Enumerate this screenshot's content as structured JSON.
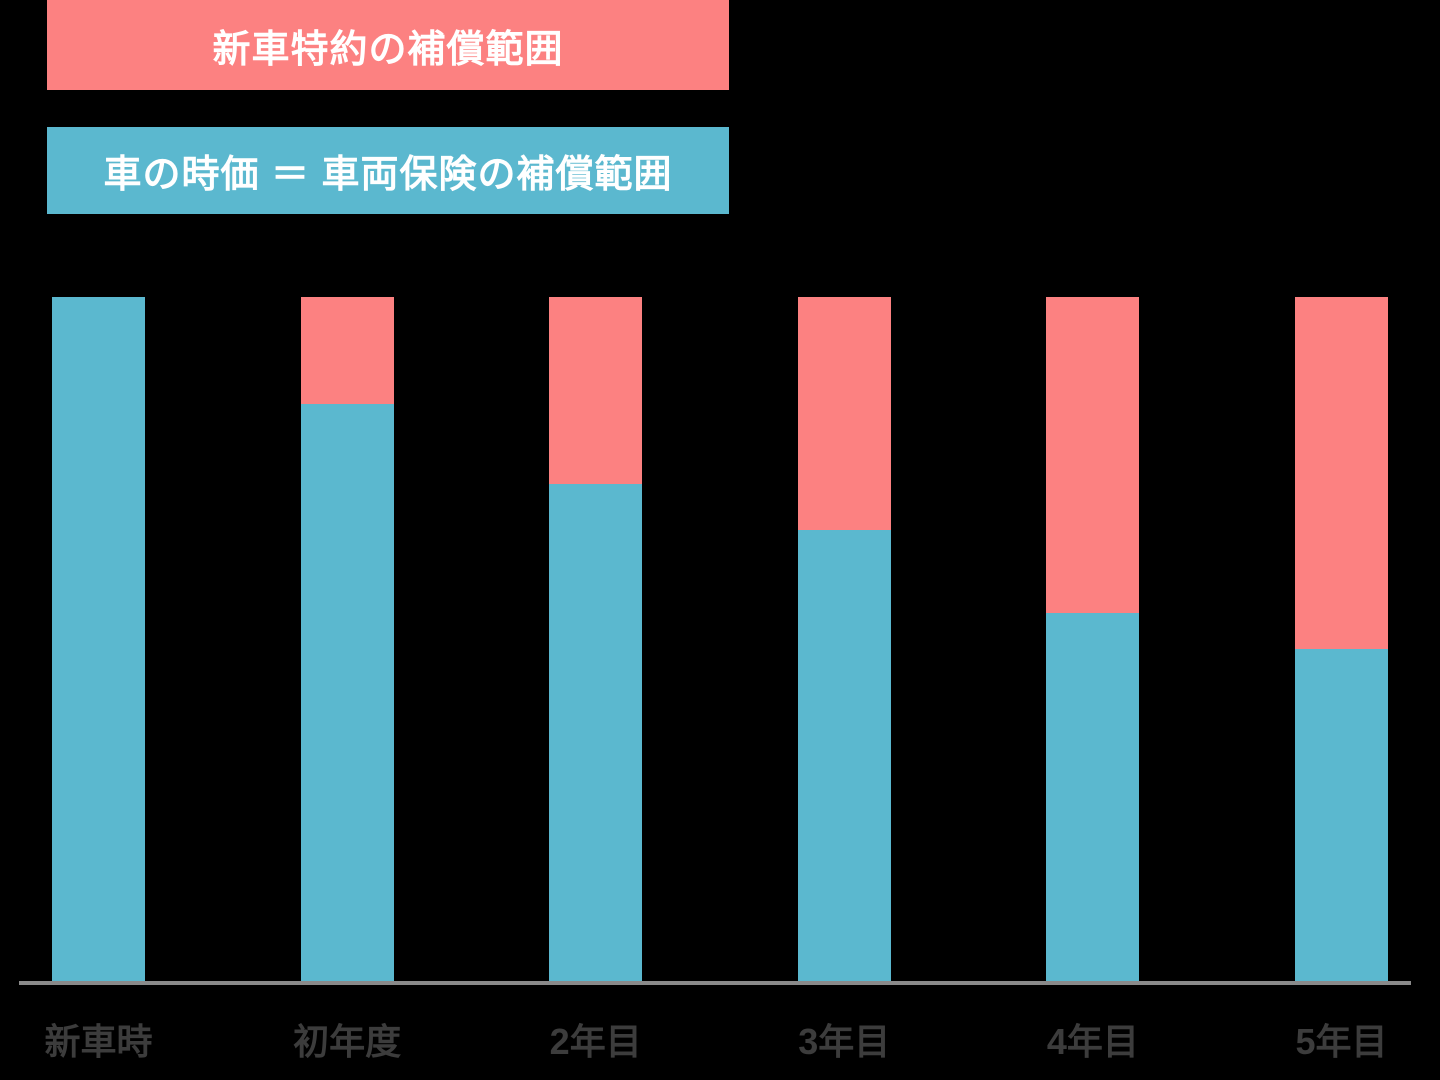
{
  "legend": {
    "items": [
      {
        "id": "new-car-rider-coverage",
        "label": "新車特約の補償範囲",
        "color": "#fc8181",
        "text_color": "#ffffff"
      },
      {
        "id": "market-value-coverage",
        "label": "車の時価 ＝ 車両保険の補償範囲",
        "color": "#5bb8cf",
        "text_color": "#ffffff"
      }
    ]
  },
  "chart_data": {
    "type": "bar",
    "variant": "stacked-vertical-100pct",
    "title": "",
    "categories": [
      "新車時",
      "初年度",
      "2年目",
      "3年目",
      "4年目",
      "5年目"
    ],
    "series": [
      {
        "name": "車の時価 ＝ 車両保険の補償範囲",
        "color": "#5bb8cf",
        "values": [
          100,
          84.4,
          72.7,
          66.0,
          53.8,
          48.6
        ]
      },
      {
        "name": "新車特約の補償範囲",
        "color": "#fc8181",
        "values": [
          0,
          15.6,
          27.3,
          34.0,
          46.2,
          51.4
        ]
      }
    ],
    "ylim": [
      0,
      100
    ],
    "grid": false,
    "legend_position": "top-left",
    "axis_color": "#8a8a8a",
    "label_color": "#3c3c3c",
    "background": "#000000"
  }
}
